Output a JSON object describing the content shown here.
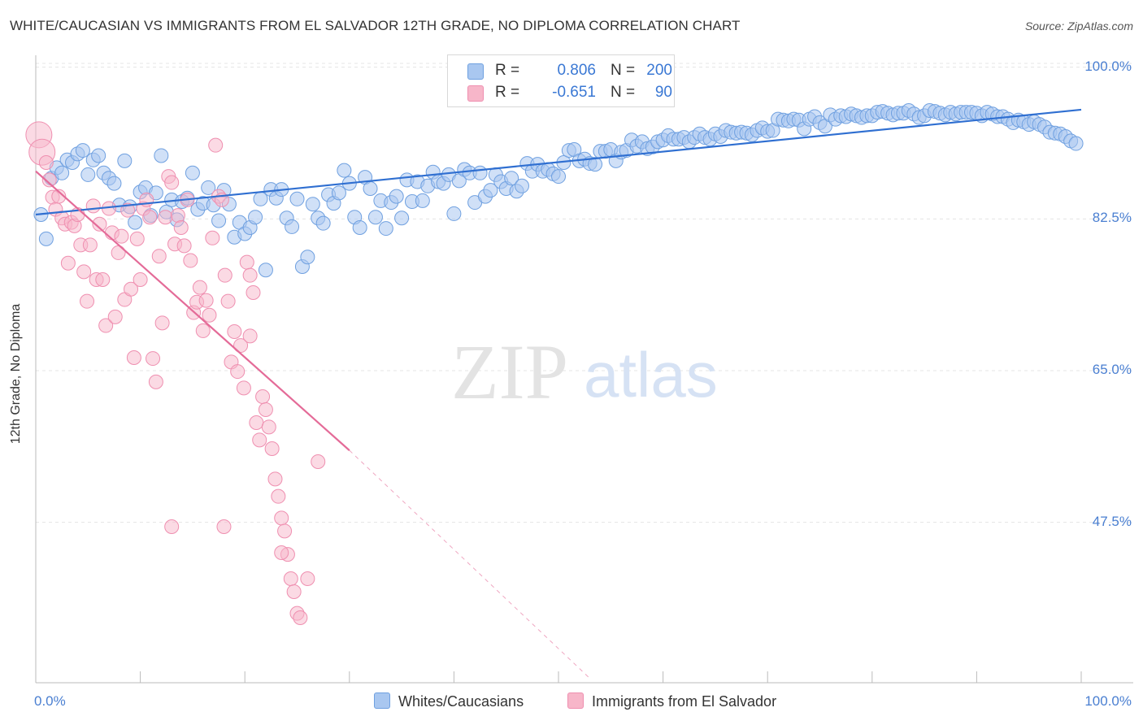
{
  "header": {
    "title": "WHITE/CAUCASIAN VS IMMIGRANTS FROM EL SALVADOR 12TH GRADE, NO DIPLOMA CORRELATION CHART",
    "source": "Source: ZipAtlas.com"
  },
  "watermark": {
    "zip": "ZIP",
    "atlas": "atlas"
  },
  "legend": {
    "rows": [
      {
        "r_label": "R =",
        "r_value": "0.806",
        "n_label": "N =",
        "n_value": "200",
        "color": "#a9c7f0"
      },
      {
        "r_label": "R =",
        "r_value": "-0.651",
        "n_label": "N =",
        "n_value": "90",
        "color": "#f7b6c9"
      }
    ]
  },
  "bottom_legend": {
    "items": [
      {
        "label": "Whites/Caucasians",
        "color": "#a9c7f0"
      },
      {
        "label": "Immigrants from El Salvador",
        "color": "#f7b6c9"
      }
    ]
  },
  "chart_data": {
    "type": "scatter",
    "title": "WHITE/CAUCASIAN VS IMMIGRANTS FROM EL SALVADOR 12TH GRADE, NO DIPLOMA CORRELATION CHART",
    "xlabel": "",
    "ylabel": "12th Grade, No Diploma",
    "xlim": [
      0,
      100
    ],
    "ylim": [
      29,
      101
    ],
    "x_tick_labels": [
      "0.0%",
      "100.0%"
    ],
    "y_ticks": [
      100.0,
      82.5,
      65.0,
      47.5
    ],
    "y_tick_labels": [
      "100.0%",
      "82.5%",
      "65.0%",
      "47.5%"
    ],
    "grid": true,
    "colors": {
      "blue": "#6fa0e0",
      "blue_fill": "#a9c7f0",
      "pink": "#ef8fb0",
      "pink_fill": "#f7b6c9",
      "blue_line": "#2f6fd1",
      "pink_line": "#e46b98",
      "tick_text": "#4a7fd1"
    },
    "series": [
      {
        "name": "Whites/Caucasians",
        "trend": {
          "x": [
            0,
            100
          ],
          "y": [
            83.0,
            95.1
          ]
        },
        "points": [
          [
            0.5,
            83.0
          ],
          [
            1,
            80.2
          ],
          [
            1.5,
            87.2
          ],
          [
            2,
            88.4
          ],
          [
            2.5,
            87.8
          ],
          [
            3,
            89.3
          ],
          [
            3.5,
            89.0
          ],
          [
            4,
            90.0
          ],
          [
            4.5,
            90.4
          ],
          [
            5,
            87.6
          ],
          [
            5.5,
            89.3
          ],
          [
            6,
            89.8
          ],
          [
            6.5,
            87.8
          ],
          [
            7,
            87.2
          ],
          [
            7.5,
            86.6
          ],
          [
            8,
            84.1
          ],
          [
            8.5,
            89.2
          ],
          [
            9,
            83.9
          ],
          [
            9.5,
            82.1
          ],
          [
            10,
            85.6
          ],
          [
            10.5,
            86.1
          ],
          [
            11,
            82.9
          ],
          [
            11.5,
            85.5
          ],
          [
            12,
            89.8
          ],
          [
            12.5,
            83.3
          ],
          [
            13,
            84.7
          ],
          [
            13.5,
            82.4
          ],
          [
            14,
            84.5
          ],
          [
            14.5,
            84.9
          ],
          [
            15,
            87.8
          ],
          [
            15.5,
            83.6
          ],
          [
            16,
            84.3
          ],
          [
            16.5,
            86.1
          ],
          [
            17,
            84.1
          ],
          [
            17.5,
            82.3
          ],
          [
            18,
            85.8
          ],
          [
            18.5,
            84.2
          ],
          [
            19,
            80.4
          ],
          [
            19.5,
            82.1
          ],
          [
            20,
            80.8
          ],
          [
            20.5,
            81.5
          ],
          [
            21,
            82.7
          ],
          [
            21.5,
            84.8
          ],
          [
            22,
            76.6
          ],
          [
            22.5,
            85.9
          ],
          [
            23,
            84.9
          ],
          [
            23.5,
            85.9
          ],
          [
            24,
            82.6
          ],
          [
            24.5,
            81.6
          ],
          [
            25,
            84.8
          ],
          [
            25.5,
            77.0
          ],
          [
            26,
            78.1
          ],
          [
            26.5,
            84.2
          ],
          [
            27,
            82.6
          ],
          [
            27.5,
            82.0
          ],
          [
            28,
            85.3
          ],
          [
            28.5,
            84.3
          ],
          [
            29,
            85.5
          ],
          [
            29.5,
            88.1
          ],
          [
            30,
            86.6
          ],
          [
            30.5,
            82.7
          ],
          [
            31,
            81.5
          ],
          [
            31.5,
            87.3
          ],
          [
            32,
            86.0
          ],
          [
            32.5,
            82.7
          ],
          [
            33,
            84.6
          ],
          [
            33.5,
            81.4
          ],
          [
            34,
            84.4
          ],
          [
            34.5,
            85.1
          ],
          [
            35,
            82.6
          ],
          [
            35.5,
            87.0
          ],
          [
            36,
            84.5
          ],
          [
            36.5,
            86.8
          ],
          [
            37,
            84.6
          ],
          [
            37.5,
            86.3
          ],
          [
            38,
            87.9
          ],
          [
            38.5,
            86.8
          ],
          [
            39,
            86.6
          ],
          [
            39.5,
            87.6
          ],
          [
            40,
            83.1
          ],
          [
            40.5,
            86.9
          ],
          [
            41,
            88.2
          ],
          [
            41.5,
            87.8
          ],
          [
            42,
            84.4
          ],
          [
            42.5,
            87.8
          ],
          [
            43,
            85.1
          ],
          [
            43.5,
            85.8
          ],
          [
            44,
            87.6
          ],
          [
            44.5,
            86.8
          ],
          [
            45,
            86.0
          ],
          [
            45.5,
            87.2
          ],
          [
            46,
            85.7
          ],
          [
            46.5,
            86.3
          ],
          [
            47,
            88.9
          ],
          [
            47.5,
            88.0
          ],
          [
            48,
            88.8
          ],
          [
            48.5,
            88.0
          ],
          [
            49,
            88.2
          ],
          [
            49.5,
            87.7
          ],
          [
            50,
            87.4
          ],
          [
            50.5,
            89.0
          ],
          [
            51,
            90.4
          ],
          [
            51.5,
            90.5
          ],
          [
            52,
            89.2
          ],
          [
            52.5,
            89.4
          ],
          [
            53,
            88.9
          ],
          [
            53.5,
            88.8
          ],
          [
            54,
            90.3
          ],
          [
            54.5,
            90.3
          ],
          [
            55,
            90.5
          ],
          [
            55.5,
            89.2
          ],
          [
            56,
            90.2
          ],
          [
            56.5,
            90.4
          ],
          [
            57,
            91.6
          ],
          [
            57.5,
            90.9
          ],
          [
            58,
            91.4
          ],
          [
            58.5,
            90.6
          ],
          [
            59,
            90.8
          ],
          [
            59.5,
            91.4
          ],
          [
            60,
            91.6
          ],
          [
            60.5,
            92.1
          ],
          [
            61,
            91.7
          ],
          [
            61.5,
            91.7
          ],
          [
            62,
            91.9
          ],
          [
            62.5,
            91.4
          ],
          [
            63,
            91.9
          ],
          [
            63.5,
            92.3
          ],
          [
            64,
            91.9
          ],
          [
            64.5,
            91.7
          ],
          [
            65,
            92.3
          ],
          [
            65.5,
            92.0
          ],
          [
            66,
            92.7
          ],
          [
            66.5,
            92.5
          ],
          [
            67,
            92.4
          ],
          [
            67.5,
            92.5
          ],
          [
            68,
            92.4
          ],
          [
            68.5,
            92.2
          ],
          [
            69,
            92.7
          ],
          [
            69.5,
            93.0
          ],
          [
            70,
            92.6
          ],
          [
            70.5,
            92.7
          ],
          [
            71,
            94.0
          ],
          [
            71.5,
            93.9
          ],
          [
            72,
            93.8
          ],
          [
            72.5,
            94.0
          ],
          [
            73,
            93.9
          ],
          [
            73.5,
            92.9
          ],
          [
            74,
            94.0
          ],
          [
            74.5,
            94.3
          ],
          [
            75,
            93.6
          ],
          [
            75.5,
            93.2
          ],
          [
            76,
            94.5
          ],
          [
            76.5,
            94.0
          ],
          [
            77,
            94.4
          ],
          [
            77.5,
            94.3
          ],
          [
            78,
            94.6
          ],
          [
            78.5,
            94.4
          ],
          [
            79,
            94.2
          ],
          [
            79.5,
            94.4
          ],
          [
            80,
            94.4
          ],
          [
            80.5,
            94.8
          ],
          [
            81,
            94.9
          ],
          [
            81.5,
            94.7
          ],
          [
            82,
            94.5
          ],
          [
            82.5,
            94.7
          ],
          [
            83,
            94.7
          ],
          [
            83.5,
            95.0
          ],
          [
            84,
            94.6
          ],
          [
            84.5,
            94.2
          ],
          [
            85,
            94.4
          ],
          [
            85.5,
            95.0
          ],
          [
            86,
            94.9
          ],
          [
            86.5,
            94.7
          ],
          [
            87,
            94.5
          ],
          [
            87.5,
            94.8
          ],
          [
            88,
            94.6
          ],
          [
            88.5,
            94.8
          ],
          [
            89,
            94.8
          ],
          [
            89.5,
            94.8
          ],
          [
            90,
            94.7
          ],
          [
            90.5,
            94.4
          ],
          [
            91,
            94.8
          ],
          [
            91.5,
            94.6
          ],
          [
            92,
            94.3
          ],
          [
            92.5,
            94.3
          ],
          [
            93,
            94.0
          ],
          [
            93.5,
            93.6
          ],
          [
            94,
            93.9
          ],
          [
            94.5,
            93.7
          ],
          [
            95,
            93.4
          ],
          [
            95.5,
            93.7
          ],
          [
            96,
            93.4
          ],
          [
            96.5,
            93.1
          ],
          [
            97,
            92.5
          ],
          [
            97.5,
            92.4
          ],
          [
            98,
            92.3
          ],
          [
            98.5,
            92.0
          ],
          [
            99,
            91.5
          ],
          [
            99.5,
            91.2
          ]
        ]
      },
      {
        "name": "Immigrants from El Salvador",
        "trend": {
          "x": [
            0,
            30
          ],
          "y": [
            88.0,
            55.8
          ],
          "dash_to": {
            "x": 53,
            "y": 29.5
          }
        },
        "points": [
          [
            0.3,
            92.2
          ],
          [
            0.6,
            90.2
          ],
          [
            1.0,
            89.0
          ],
          [
            1.3,
            87.0
          ],
          [
            1.6,
            85.0
          ],
          [
            1.9,
            83.6
          ],
          [
            2.2,
            85.1
          ],
          [
            2.5,
            82.6
          ],
          [
            2.8,
            81.9
          ],
          [
            3.1,
            77.4
          ],
          [
            3.4,
            82.1
          ],
          [
            3.7,
            81.7
          ],
          [
            4.0,
            83.0
          ],
          [
            4.3,
            79.5
          ],
          [
            4.6,
            76.4
          ],
          [
            4.9,
            73.0
          ],
          [
            5.2,
            79.5
          ],
          [
            5.5,
            84.0
          ],
          [
            5.8,
            75.5
          ],
          [
            6.1,
            81.9
          ],
          [
            6.4,
            75.5
          ],
          [
            6.7,
            70.2
          ],
          [
            7.0,
            83.7
          ],
          [
            7.3,
            80.9
          ],
          [
            7.6,
            71.2
          ],
          [
            7.9,
            78.6
          ],
          [
            8.2,
            80.5
          ],
          [
            8.5,
            73.2
          ],
          [
            8.8,
            83.5
          ],
          [
            9.1,
            74.4
          ],
          [
            9.4,
            66.5
          ],
          [
            9.7,
            80.2
          ],
          [
            10.0,
            75.5
          ],
          [
            10.3,
            83.7
          ],
          [
            10.6,
            84.7
          ],
          [
            10.9,
            82.7
          ],
          [
            11.2,
            66.4
          ],
          [
            11.5,
            63.7
          ],
          [
            11.8,
            78.2
          ],
          [
            12.1,
            70.5
          ],
          [
            12.4,
            82.7
          ],
          [
            12.7,
            87.4
          ],
          [
            13.0,
            86.7
          ],
          [
            13.3,
            79.6
          ],
          [
            13.6,
            82.9
          ],
          [
            13.9,
            81.5
          ],
          [
            14.2,
            79.4
          ],
          [
            14.5,
            84.7
          ],
          [
            14.8,
            77.7
          ],
          [
            15.1,
            71.7
          ],
          [
            15.4,
            72.9
          ],
          [
            15.7,
            74.6
          ],
          [
            16.0,
            69.6
          ],
          [
            16.3,
            73.1
          ],
          [
            16.6,
            71.4
          ],
          [
            16.9,
            80.3
          ],
          [
            17.2,
            91.0
          ],
          [
            17.5,
            85.1
          ],
          [
            17.8,
            84.7
          ],
          [
            18.1,
            76.0
          ],
          [
            18.4,
            73.0
          ],
          [
            18.7,
            66.0
          ],
          [
            19.0,
            69.5
          ],
          [
            19.3,
            64.9
          ],
          [
            19.6,
            67.9
          ],
          [
            19.9,
            63.0
          ],
          [
            20.2,
            77.5
          ],
          [
            20.5,
            76.0
          ],
          [
            20.8,
            74.0
          ],
          [
            21.1,
            59.0
          ],
          [
            21.4,
            57.0
          ],
          [
            21.7,
            62.0
          ],
          [
            22.0,
            60.5
          ],
          [
            22.3,
            58.5
          ],
          [
            22.6,
            56.0
          ],
          [
            22.9,
            52.5
          ],
          [
            23.2,
            50.5
          ],
          [
            23.5,
            48.0
          ],
          [
            23.8,
            46.5
          ],
          [
            24.1,
            43.8
          ],
          [
            24.4,
            41.0
          ],
          [
            24.7,
            39.5
          ],
          [
            25.0,
            37.0
          ],
          [
            25.3,
            36.5
          ],
          [
            13.0,
            47.0
          ],
          [
            18.0,
            47.0
          ],
          [
            23.5,
            44.0
          ],
          [
            26.0,
            41.0
          ],
          [
            27.0,
            54.5
          ],
          [
            20.5,
            69.0
          ]
        ]
      }
    ]
  }
}
